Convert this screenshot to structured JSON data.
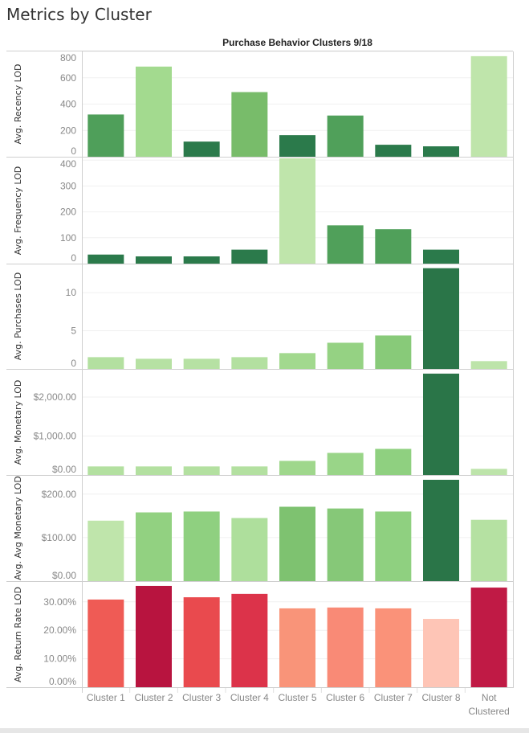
{
  "page": {
    "title": "Metrics by Cluster"
  },
  "chart_data": {
    "type": "bar",
    "title": "Purchase Behavior Clusters 9/18",
    "categories": [
      "Cluster 1",
      "Cluster 2",
      "Cluster 3",
      "Cluster 4",
      "Cluster 5",
      "Cluster 6",
      "Cluster 7",
      "Cluster 8",
      "Not Clustered"
    ],
    "category_lines": [
      [
        "Cluster 1"
      ],
      [
        "Cluster 2"
      ],
      [
        "Cluster 3"
      ],
      [
        "Cluster 4"
      ],
      [
        "Cluster 5"
      ],
      [
        "Cluster 6"
      ],
      [
        "Cluster 7"
      ],
      [
        "Cluster 8"
      ],
      [
        "Not",
        "Clustered"
      ]
    ],
    "grid": true,
    "panels": [
      {
        "ylabel": "Avg. Recency LOD",
        "ylim": [
          0,
          800
        ],
        "ticks": [
          0,
          200,
          400,
          600,
          800
        ],
        "tick_labels": [
          "0",
          "200",
          "400",
          "600",
          "800"
        ],
        "values": [
          321,
          685,
          115,
          491,
          164,
          313,
          91,
          79,
          764
        ],
        "colors": [
          "#4f9f5a",
          "#a3da8f",
          "#2b7a4b",
          "#78bc6a",
          "#2b7a4b",
          "#50a05a",
          "#2b7a4b",
          "#2b7a4b",
          "#bfe5ab"
        ]
      },
      {
        "ylabel": "Avg. Frequency LOD",
        "ylim": [
          0,
          410
        ],
        "ticks": [
          0,
          100,
          200,
          300,
          400
        ],
        "tick_labels": [
          "0",
          "100",
          "200",
          "300",
          "400"
        ],
        "values": [
          35,
          28,
          28,
          54,
          410,
          148,
          133,
          54,
          null
        ],
        "colors": [
          "#2b7a4b",
          "#2b7a4b",
          "#2b7a4b",
          "#2b7a4b",
          "#bfe5ab",
          "#50a05a",
          "#50a05a",
          "#2b7a4b",
          "#bfe5ab"
        ]
      },
      {
        "ylabel": "Avg. Purchases LOD",
        "ylim": [
          0,
          13.8
        ],
        "ticks": [
          0,
          5,
          10
        ],
        "tick_labels": [
          "0",
          "5",
          "10"
        ],
        "values": [
          1.54,
          1.33,
          1.33,
          1.54,
          2.07,
          3.43,
          4.38,
          13.2,
          1.02
        ],
        "colors": [
          "#b3e0a0",
          "#b6e1a3",
          "#b6e1a3",
          "#b3e0a0",
          "#a2d98e",
          "#95d283",
          "#88ca79",
          "#2a7548",
          "#bde4aa"
        ]
      },
      {
        "ylabel": "Avg. Monetary LOD",
        "ylim": [
          0,
          2700
        ],
        "ticks": [
          0,
          1000,
          2000
        ],
        "tick_labels": [
          "$0.00",
          "$1,000.00",
          "$2,000.00"
        ],
        "values": [
          220,
          220,
          220,
          220,
          362,
          567,
          670,
          2600,
          158
        ],
        "colors": [
          "#b3e0a0",
          "#b3e0a0",
          "#b3e0a0",
          "#b3e0a0",
          "#9fd78c",
          "#99d588",
          "#8fd080",
          "#2a7548",
          "#bde4aa"
        ]
      },
      {
        "ylabel": "Avg. Avg Monetary LOD",
        "ylim": [
          0,
          244
        ],
        "ticks": [
          0,
          100,
          200
        ],
        "tick_labels": [
          "$0.00",
          "$100.00",
          "$200.00"
        ],
        "values": [
          139,
          158,
          160,
          145,
          171,
          167,
          160,
          233,
          141
        ],
        "colors": [
          "#bfe5ab",
          "#92d181",
          "#8fd080",
          "#aedf9c",
          "#7ec270",
          "#86c878",
          "#8fd080",
          "#2a7548",
          "#b5e1a2"
        ]
      },
      {
        "ylabel": "Avg. Return Rate LOD",
        "ylim": [
          0,
          37
        ],
        "ticks": [
          0,
          10,
          20,
          30
        ],
        "tick_labels": [
          "0.00%",
          "10.00%",
          "20.00%",
          "30.00%"
        ],
        "values": [
          30.8,
          35.6,
          31.6,
          32.8,
          27.7,
          28.0,
          27.7,
          24.0,
          35.0
        ],
        "colors": [
          "#ef5b55",
          "#b8143f",
          "#e94a4e",
          "#dc334a",
          "#f99479",
          "#f98a76",
          "#fa9279",
          "#fec5b6",
          "#c01a45"
        ]
      }
    ]
  }
}
